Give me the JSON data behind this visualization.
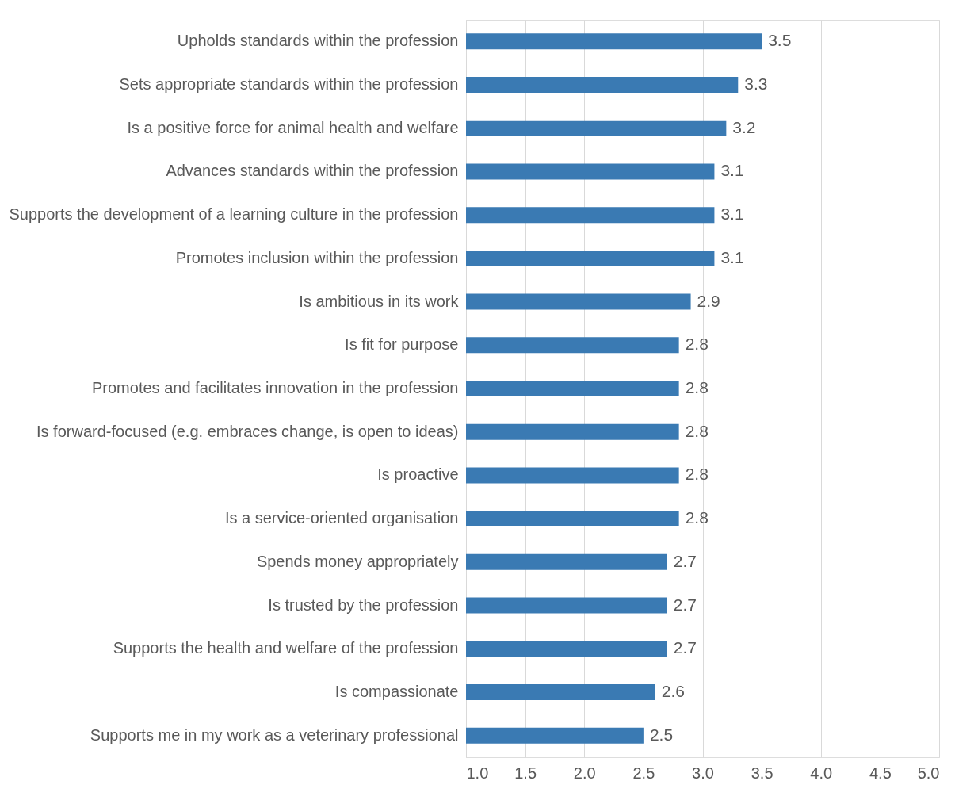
{
  "chart_data": {
    "type": "bar",
    "orientation": "horizontal",
    "categories": [
      "Upholds standards within the profession",
      "Sets appropriate standards within the profession",
      "Is a positive force for animal health and welfare",
      "Advances standards within the profession",
      "Supports the development of a learning culture in the profession",
      "Promotes inclusion within the profession",
      "Is ambitious in its work",
      "Is fit for purpose",
      "Promotes and facilitates innovation in the profession",
      "Is forward-focused (e.g. embraces change, is open to ideas)",
      "Is proactive",
      "Is a service-oriented organisation",
      "Spends money appropriately",
      "Is trusted by the profession",
      "Supports the health and welfare of the profession",
      "Is compassionate",
      "Supports me in my work as a veterinary professional"
    ],
    "values": [
      3.5,
      3.3,
      3.2,
      3.1,
      3.1,
      3.1,
      2.9,
      2.8,
      2.8,
      2.8,
      2.8,
      2.8,
      2.7,
      2.7,
      2.7,
      2.6,
      2.5
    ],
    "color": "#3a7ab3",
    "xlim": [
      1.0,
      5.0
    ],
    "xticks": [
      {
        "value": 1.0,
        "label": "1.0"
      },
      {
        "value": 1.5,
        "label": "1.5"
      },
      {
        "value": 2.0,
        "label": "2.0"
      },
      {
        "value": 2.5,
        "label": "2.5"
      },
      {
        "value": 3.0,
        "label": "3.0"
      },
      {
        "value": 3.5,
        "label": "3.5"
      },
      {
        "value": 4.0,
        "label": "4.0"
      },
      {
        "value": 4.5,
        "label": "4.5"
      },
      {
        "value": 5.0,
        "label": "5.0"
      }
    ],
    "grid": "x",
    "data_labels": true
  }
}
